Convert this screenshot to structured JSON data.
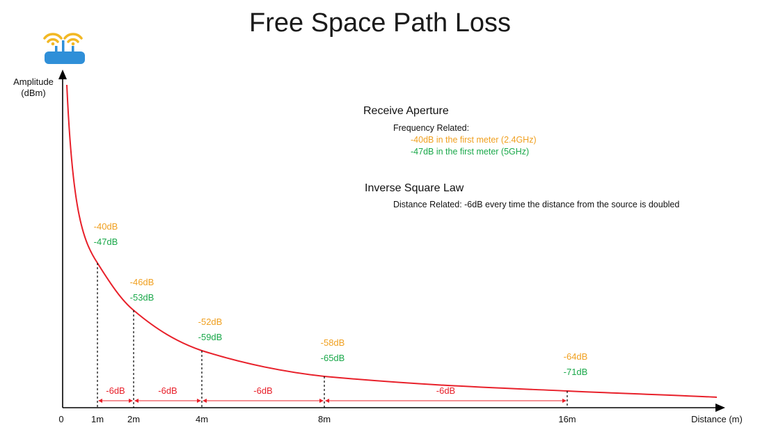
{
  "title": "Free Space Path Loss",
  "axes": {
    "y_label_line1": "Amplitude",
    "y_label_line2": "(dBm)",
    "x_label": "Distance (m)",
    "origin_label": "0"
  },
  "colors": {
    "curve": "#e8202a",
    "band_2_4ghz": "#f0a020",
    "band_5ghz": "#1aa84a",
    "axis": "#000000"
  },
  "icon": "wifi-router-icon",
  "info": {
    "receive_aperture": {
      "heading": "Receive Aperture",
      "subheading": "Frequency Related:",
      "line_2_4": "-40dB in the first meter (2.4GHz)",
      "line_5": "-47dB in the first meter (5GHz)"
    },
    "inverse_square": {
      "heading": "Inverse Square Law",
      "line": "Distance Related: -6dB every time the distance from the source is doubled"
    }
  },
  "markers": [
    {
      "distance_label": "1m",
      "distance_m": 1,
      "db_2_4": "-40dB",
      "db_5": "-47dB"
    },
    {
      "distance_label": "2m",
      "distance_m": 2,
      "db_2_4": "-46dB",
      "db_5": "-53dB"
    },
    {
      "distance_label": "4m",
      "distance_m": 4,
      "db_2_4": "-52dB",
      "db_5": "-59dB"
    },
    {
      "distance_label": "8m",
      "distance_m": 8,
      "db_2_4": "-58dB",
      "db_5": "-65dB"
    },
    {
      "distance_label": "16m",
      "distance_m": 16,
      "db_2_4": "-64dB",
      "db_5": "-71dB"
    }
  ],
  "intervals": [
    "-6dB",
    "-6dB",
    "-6dB",
    "-6dB"
  ]
}
